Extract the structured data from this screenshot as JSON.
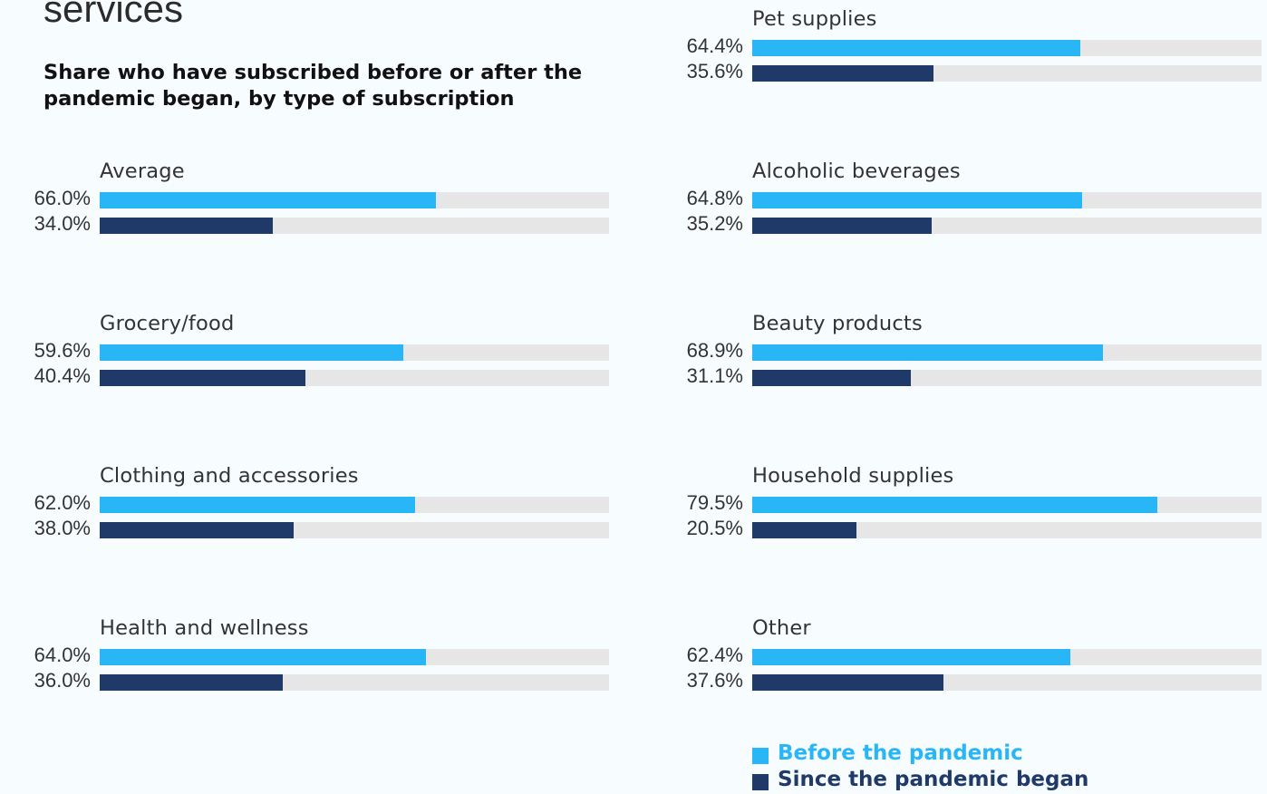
{
  "header": {
    "title": "services",
    "subtitle": "Share who have subscribed before or after the pandemic began, by type of subscription"
  },
  "colors": {
    "before": "#29b6f6",
    "since": "#1f3a68",
    "track": "#e6e6e6"
  },
  "chart_data": {
    "type": "bar",
    "title": "services",
    "subtitle": "Share who have subscribed before or after the pandemic began, by type of subscription",
    "categories": [
      "Average",
      "Grocery/food",
      "Clothing and accessories",
      "Health and wellness",
      "Pet supplies",
      "Alcoholic beverages",
      "Beauty products",
      "Household supplies",
      "Other"
    ],
    "xlim": [
      0,
      100
    ],
    "grid": false,
    "legend_position": "bottom-right",
    "series": [
      {
        "name": "Before the pandemic",
        "values": [
          66.0,
          59.6,
          62.0,
          64.0,
          64.4,
          64.8,
          68.9,
          79.5,
          62.4
        ],
        "labels": [
          "66.0%",
          "59.6%",
          "62.0%",
          "64.0%",
          "64.4%",
          "64.8%",
          "68.9%",
          "79.5%",
          "62.4%"
        ]
      },
      {
        "name": "Since the pandemic began",
        "values": [
          34.0,
          40.4,
          38.0,
          36.0,
          35.6,
          35.2,
          31.1,
          20.5,
          37.6
        ],
        "labels": [
          "34.0%",
          "40.4%",
          "38.0%",
          "36.0%",
          "35.6%",
          "35.2%",
          "31.1%",
          "20.5%",
          "37.6%"
        ]
      }
    ]
  }
}
